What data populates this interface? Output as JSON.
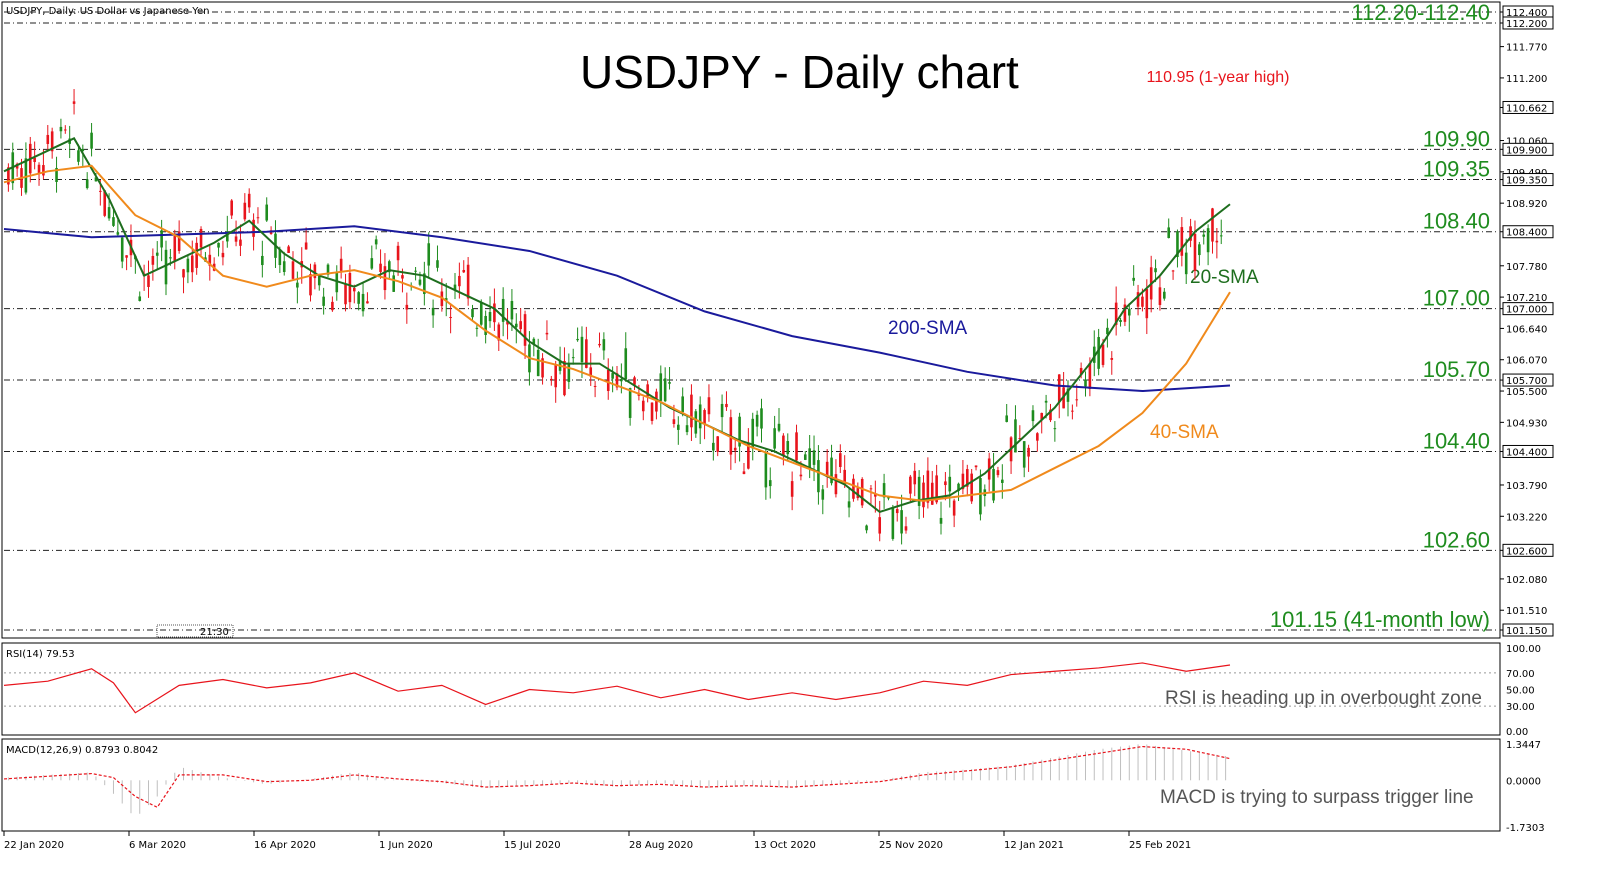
{
  "window": {
    "symbol_title": "USDJPY, Daily:  US Dollar vs Japanese Yen",
    "time_marker": "21:30"
  },
  "chart_data": [
    {
      "type": "line",
      "title": "USDJPY - Daily chart",
      "ylim": [
        101.15,
        112.4
      ],
      "x_ticks": [
        "22 Jan 2020",
        "6 Mar 2020",
        "16 Apr 2020",
        "1 Jun 2020",
        "15 Jul 2020",
        "28 Aug 2020",
        "13 Oct 2020",
        "25 Nov 2020",
        "12 Jan 2021",
        "25 Feb 2021"
      ],
      "y_ticks": [
        "112.400",
        "112.200",
        "111.770",
        "111.200",
        "110.662",
        "110.060",
        "109.900",
        "109.490",
        "109.350",
        "108.920",
        "108.400",
        "107.780",
        "107.210",
        "107.000",
        "106.640",
        "106.070",
        "105.700",
        "105.500",
        "104.930",
        "104.400",
        "103.790",
        "103.220",
        "102.600",
        "102.080",
        "101.510",
        "101.150"
      ],
      "highlighted_price_labels": [
        "112.400",
        "112.200",
        "110.662",
        "109.900",
        "109.350",
        "108.400",
        "107.000",
        "105.700",
        "104.400",
        "102.600",
        "101.150"
      ],
      "current_price": 110.662,
      "horizontal_levels": [
        {
          "value": 112.4,
          "label": ""
        },
        {
          "value": 112.2,
          "label": "112.20-112.40",
          "color": "#e8141c"
        },
        {
          "value": 109.9,
          "label": "109.90"
        },
        {
          "value": 109.35,
          "label": "109.35"
        },
        {
          "value": 108.4,
          "label": "108.40"
        },
        {
          "value": 107.0,
          "label": "107.00"
        },
        {
          "value": 105.7,
          "label": "105.70"
        },
        {
          "value": 104.4,
          "label": "104.40"
        },
        {
          "value": 102.6,
          "label": "102.60"
        },
        {
          "value": 101.15,
          "label": "101.15 (41-month low)"
        }
      ],
      "annotations": [
        {
          "text": "110.95 (1-year high)",
          "color": "#e8141c"
        },
        {
          "text": "200-SMA",
          "color": "#1a1a9c"
        },
        {
          "text": "20-SMA",
          "color": "#1e6e1e"
        },
        {
          "text": "40-SMA",
          "color": "#f08a1c"
        }
      ],
      "series": [
        {
          "name": "200-SMA",
          "color": "#1a1a9c",
          "x": [
            0,
            20,
            40,
            60,
            80,
            100,
            120,
            140,
            160,
            180,
            200,
            220,
            240,
            260,
            280
          ],
          "y": [
            108.45,
            108.3,
            108.35,
            108.4,
            108.5,
            108.3,
            108.05,
            107.6,
            106.95,
            106.5,
            106.2,
            105.85,
            105.6,
            105.5,
            105.6
          ]
        },
        {
          "name": "20-SMA",
          "color": "#1e6e1e",
          "x": [
            0,
            8,
            16,
            24,
            32,
            40,
            48,
            56,
            64,
            72,
            80,
            88,
            96,
            104,
            112,
            120,
            128,
            136,
            144,
            152,
            160,
            168,
            176,
            184,
            192,
            200,
            208,
            216,
            224,
            232,
            240,
            248,
            256,
            264,
            272,
            280
          ],
          "y": [
            109.5,
            109.8,
            110.1,
            109.0,
            107.6,
            107.9,
            108.2,
            108.6,
            108.0,
            107.6,
            107.4,
            107.7,
            107.6,
            107.3,
            107.0,
            106.4,
            106.0,
            106.0,
            105.6,
            105.2,
            104.9,
            104.6,
            104.4,
            104.1,
            103.8,
            103.3,
            103.5,
            103.6,
            104.0,
            104.6,
            105.2,
            106.0,
            107.0,
            107.6,
            108.4,
            108.9
          ]
        },
        {
          "name": "40-SMA",
          "color": "#f08a1c",
          "x": [
            0,
            10,
            20,
            30,
            40,
            50,
            60,
            70,
            80,
            90,
            100,
            110,
            120,
            130,
            140,
            150,
            160,
            170,
            180,
            190,
            200,
            210,
            220,
            230,
            240,
            250,
            260,
            270,
            280
          ],
          "y": [
            109.3,
            109.5,
            109.6,
            108.7,
            108.3,
            107.6,
            107.4,
            107.6,
            107.7,
            107.5,
            107.2,
            106.6,
            106.1,
            105.9,
            105.6,
            105.3,
            104.9,
            104.5,
            104.2,
            103.9,
            103.6,
            103.5,
            103.6,
            103.7,
            104.1,
            104.5,
            105.1,
            106.0,
            107.3
          ]
        }
      ]
    },
    {
      "type": "line",
      "title": "RSI(14) 79.53",
      "ylim": [
        0,
        100
      ],
      "y_ticks": [
        "100.00",
        "70.00",
        "50.00",
        "30.00",
        "0.00"
      ],
      "note": "RSI is heading up in overbought zone",
      "series": [
        {
          "name": "RSI(14)",
          "color": "#e8141c",
          "x": [
            0,
            10,
            20,
            25,
            30,
            40,
            50,
            60,
            70,
            80,
            90,
            100,
            110,
            120,
            130,
            140,
            150,
            160,
            170,
            180,
            190,
            200,
            210,
            220,
            230,
            240,
            250,
            260,
            270,
            280
          ],
          "y": [
            55,
            60,
            75,
            58,
            22,
            55,
            62,
            52,
            58,
            70,
            48,
            55,
            32,
            50,
            46,
            54,
            40,
            50,
            38,
            46,
            38,
            46,
            60,
            55,
            68,
            72,
            76,
            82,
            72,
            79.53
          ]
        }
      ]
    },
    {
      "type": "bar",
      "title": "MACD(12,26,9) 0.8793 0.8042",
      "ylim": [
        -1.7303,
        1.3447
      ],
      "y_ticks": [
        "1.3447",
        "0.0000",
        "-1.7303"
      ],
      "note": "MACD is trying to surpass trigger line",
      "series": [
        {
          "name": "MACD",
          "color": "#bfbfbf",
          "x": [
            0,
            10,
            20,
            25,
            30,
            35,
            40,
            50,
            60,
            70,
            80,
            90,
            100,
            110,
            120,
            130,
            140,
            150,
            160,
            170,
            180,
            190,
            200,
            210,
            220,
            230,
            240,
            250,
            260,
            270,
            280
          ],
          "y": [
            0.1,
            0.2,
            0.3,
            -0.5,
            -1.4,
            -0.6,
            0.5,
            0.1,
            -0.15,
            0.05,
            0.3,
            0.0,
            -0.1,
            -0.3,
            -0.2,
            -0.1,
            -0.25,
            -0.1,
            -0.3,
            -0.2,
            -0.3,
            -0.15,
            0.0,
            0.3,
            0.4,
            0.55,
            0.85,
            1.15,
            1.35,
            1.1,
            0.8793
          ]
        },
        {
          "name": "Signal",
          "color": "#e8141c",
          "x": [
            0,
            10,
            20,
            25,
            30,
            35,
            40,
            50,
            60,
            70,
            80,
            90,
            100,
            110,
            120,
            130,
            140,
            150,
            160,
            170,
            180,
            190,
            200,
            210,
            220,
            230,
            240,
            250,
            260,
            270,
            280
          ],
          "y": [
            0.05,
            0.15,
            0.25,
            0.1,
            -0.6,
            -1.0,
            0.2,
            0.2,
            -0.05,
            0.0,
            0.2,
            0.05,
            -0.05,
            -0.25,
            -0.2,
            -0.1,
            -0.2,
            -0.15,
            -0.25,
            -0.2,
            -0.25,
            -0.15,
            -0.05,
            0.2,
            0.35,
            0.5,
            0.75,
            1.0,
            1.25,
            1.15,
            0.8042
          ]
        }
      ]
    }
  ]
}
